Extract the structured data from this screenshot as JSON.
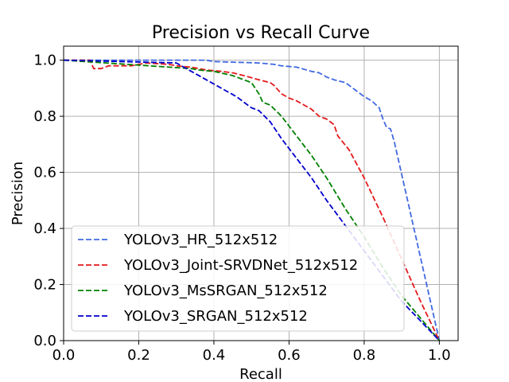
{
  "chart_data": {
    "type": "line",
    "title": "Precision vs Recall Curve",
    "xlabel": "Recall",
    "ylabel": "Precision",
    "xlim": [
      0.0,
      1.05
    ],
    "ylim": [
      0.0,
      1.05
    ],
    "xticks": [
      "0.0",
      "0.2",
      "0.4",
      "0.6",
      "0.8",
      "1.0"
    ],
    "yticks": [
      "0.0",
      "0.2",
      "0.4",
      "0.6",
      "0.8",
      "1.0"
    ],
    "grid": true,
    "legend_position": "lower-left",
    "series": [
      {
        "name": "YOLOv3_HR_512x512",
        "color": "#4169e1",
        "x": [
          0.0,
          0.38,
          0.4,
          0.52,
          0.56,
          0.58,
          0.62,
          0.66,
          0.68,
          0.7,
          0.72,
          0.75,
          0.78,
          0.8,
          0.82,
          0.84,
          0.85,
          0.86,
          0.87,
          0.88,
          1.0
        ],
        "y": [
          1.0,
          1.0,
          0.995,
          0.99,
          0.985,
          0.98,
          0.975,
          0.96,
          0.955,
          0.94,
          0.93,
          0.92,
          0.89,
          0.87,
          0.855,
          0.83,
          0.79,
          0.76,
          0.755,
          0.71,
          0.0
        ]
      },
      {
        "name": "YOLOv3_Joint-SRVDNet_512x512",
        "color": "#e41a1c",
        "x": [
          0.0,
          0.07,
          0.08,
          0.1,
          0.12,
          0.18,
          0.2,
          0.22,
          0.28,
          0.3,
          0.34,
          0.36,
          0.38,
          0.42,
          0.45,
          0.48,
          0.52,
          0.55,
          0.56,
          0.58,
          0.6,
          0.62,
          0.64,
          0.66,
          0.68,
          0.7,
          0.72,
          0.73,
          0.76,
          0.8,
          0.85,
          0.9,
          0.95,
          1.0
        ],
        "y": [
          1.0,
          1.0,
          0.97,
          0.97,
          0.98,
          0.98,
          0.985,
          0.99,
          0.985,
          0.98,
          0.975,
          0.97,
          0.965,
          0.96,
          0.955,
          0.945,
          0.93,
          0.92,
          0.91,
          0.88,
          0.865,
          0.855,
          0.84,
          0.825,
          0.8,
          0.79,
          0.77,
          0.73,
          0.68,
          0.58,
          0.44,
          0.29,
          0.14,
          0.0
        ]
      },
      {
        "name": "YOLOv3_MsSRGAN_512x512",
        "color": "#008000",
        "x": [
          0.0,
          0.34,
          0.36,
          0.4,
          0.45,
          0.48,
          0.5,
          0.52,
          0.53,
          0.55,
          0.58,
          0.62,
          0.66,
          0.7,
          0.75,
          0.8,
          0.85,
          0.9,
          0.95,
          1.0
        ],
        "y": [
          1.0,
          0.97,
          0.965,
          0.96,
          0.945,
          0.93,
          0.92,
          0.88,
          0.85,
          0.84,
          0.8,
          0.73,
          0.66,
          0.58,
          0.47,
          0.37,
          0.26,
          0.16,
          0.08,
          0.0
        ]
      },
      {
        "name": "YOLOv3_SRGAN_512x512",
        "color": "#0000cd",
        "x": [
          0.0,
          0.3,
          0.34,
          0.38,
          0.42,
          0.46,
          0.5,
          0.52,
          0.55,
          0.58,
          0.62,
          0.66,
          0.7,
          0.75,
          0.8,
          0.85,
          0.9,
          0.95,
          1.0
        ],
        "y": [
          1.0,
          0.99,
          0.96,
          0.93,
          0.9,
          0.87,
          0.83,
          0.82,
          0.78,
          0.72,
          0.65,
          0.58,
          0.5,
          0.41,
          0.32,
          0.23,
          0.14,
          0.07,
          0.0
        ]
      }
    ]
  }
}
